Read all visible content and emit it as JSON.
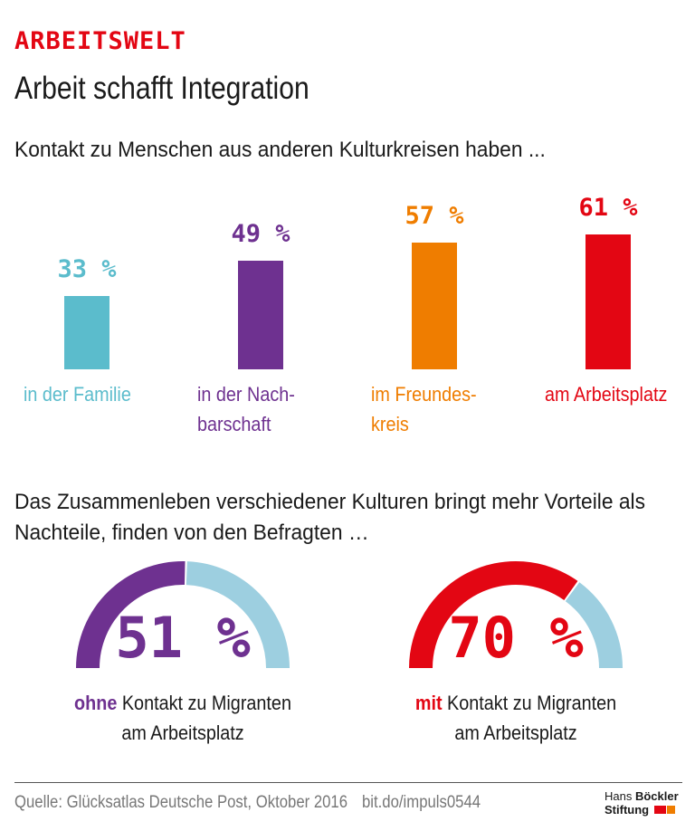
{
  "kicker": "ARBEITSWELT",
  "title": "Arbeit schafft Integration",
  "chart_data": [
    {
      "type": "bar",
      "title": "Kontakt zu Menschen aus anderen Kulturkreisen haben ...",
      "categories": [
        "in der Familie",
        "in der Nachbarschaft",
        "im Freundeskreis",
        "am Arbeitsplatz"
      ],
      "label_lines": [
        [
          "in der Familie"
        ],
        [
          "in der Nach-",
          "barschaft"
        ],
        [
          "im Freundes-",
          "kreis"
        ],
        [
          "am Arbeitsplatz"
        ]
      ],
      "values": [
        33,
        49,
        57,
        61
      ],
      "value_labels": [
        "33 %",
        "49 %",
        "57 %",
        "61 %"
      ],
      "colors": [
        "#5bbccc",
        "#6e3190",
        "#ef7d00",
        "#e30613"
      ],
      "unit": "%",
      "grid": false
    },
    {
      "type": "pie",
      "title": "Das Zusammenleben verschiedener Kulturen bringt mehr Vorteile als Nachteile, finden von den Befragten …",
      "gauges": [
        {
          "value": 51,
          "value_label": "51 %",
          "color": "#6e3190",
          "rest_color": "#9dcfe0",
          "label_bold": "ohne",
          "label_rest": "Kontakt zu Migranten",
          "label_line2": "am Arbeitsplatz"
        },
        {
          "value": 70,
          "value_label": "70 %",
          "color": "#e30613",
          "rest_color": "#9dcfe0",
          "label_bold": "mit",
          "label_rest": "Kontakt zu Migranten",
          "label_line2": "am Arbeitsplatz"
        }
      ]
    }
  ],
  "footer": {
    "source": "Quelle: Glücksatlas Deutsche Post, Oktober 2016",
    "link": "bit.do/impuls0544",
    "logo_line1_a": "Hans ",
    "logo_line1_b": "Böckler",
    "logo_line2": "Stiftung",
    "logo_colors": [
      "#e30613",
      "#ef7d00"
    ]
  }
}
